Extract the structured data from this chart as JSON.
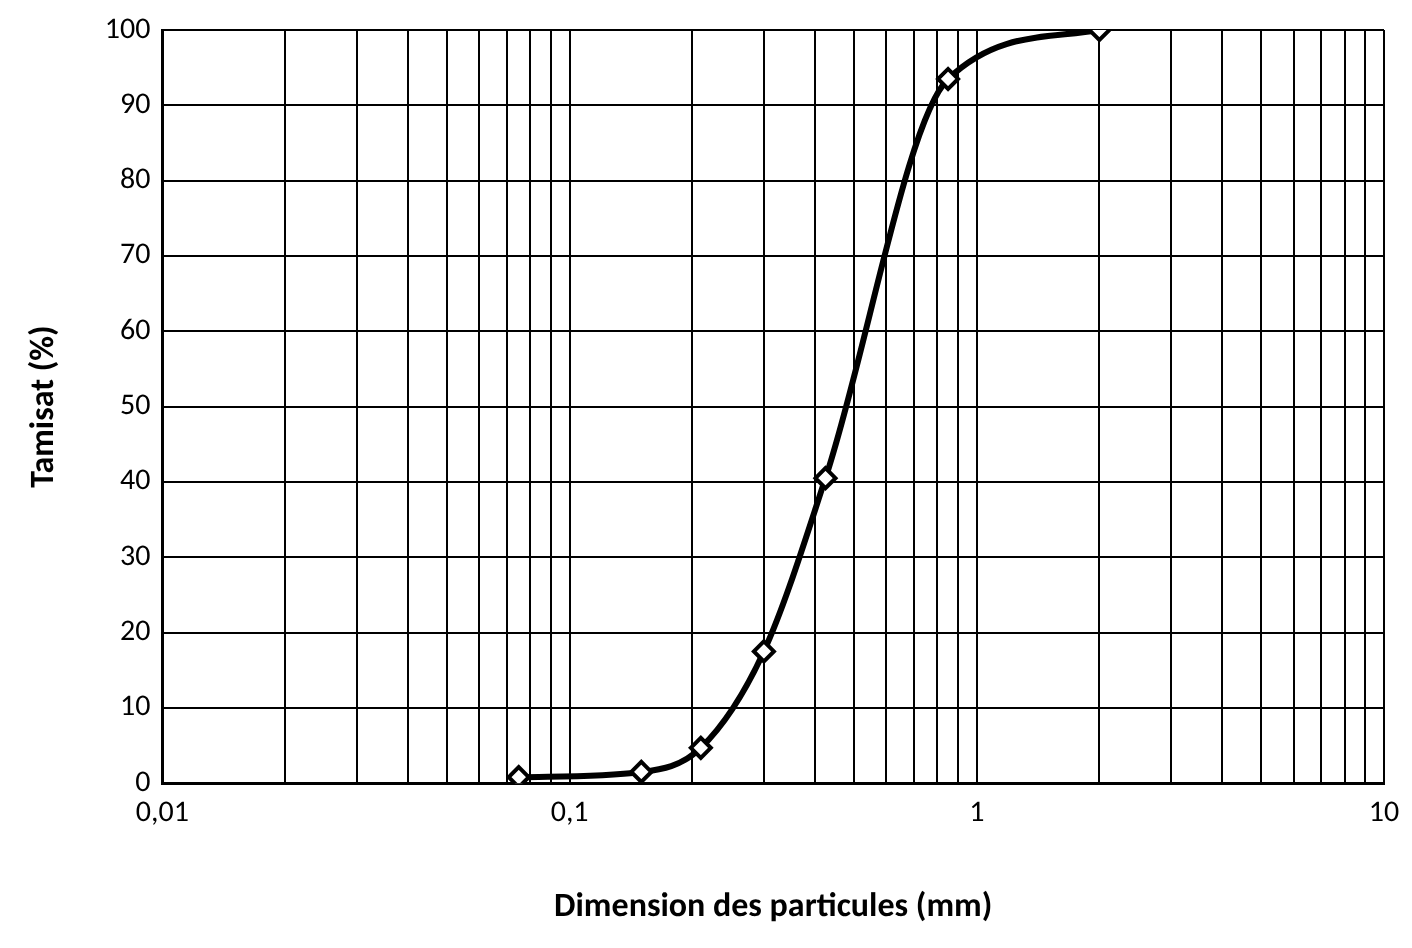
{
  "chart_data": {
    "type": "line",
    "xlabel": "Dimension des particules (mm)",
    "ylabel": "Tamisat (%)",
    "x": [
      0.075,
      0.15,
      0.21,
      0.3,
      0.425,
      0.85,
      2
    ],
    "series": [
      {
        "color": "#000000",
        "values": [
          0.8,
          1.5,
          4.7,
          17.5,
          40.5,
          93.5,
          100
        ]
      }
    ],
    "log": "x",
    "xlim": [
      0.01,
      10
    ],
    "xticks": [
      {
        "value": 0.01,
        "label": "0,01"
      },
      {
        "value": 0.02,
        "label": null
      },
      {
        "value": 0.03,
        "label": null
      },
      {
        "value": 0.04,
        "label": null
      },
      {
        "value": 0.05,
        "label": null
      },
      {
        "value": 0.06,
        "label": null
      },
      {
        "value": 0.07,
        "label": null
      },
      {
        "value": 0.08,
        "label": null
      },
      {
        "value": 0.09,
        "label": null
      },
      {
        "value": 0.1,
        "label": "0,1"
      },
      {
        "value": 0.2,
        "label": null
      },
      {
        "value": 0.3,
        "label": null
      },
      {
        "value": 0.4,
        "label": null
      },
      {
        "value": 0.5,
        "label": null
      },
      {
        "value": 0.6,
        "label": null
      },
      {
        "value": 0.7,
        "label": null
      },
      {
        "value": 0.8,
        "label": null
      },
      {
        "value": 0.9,
        "label": null
      },
      1,
      {
        "value": 2,
        "label": null
      },
      {
        "value": 3,
        "label": null
      },
      {
        "value": 4,
        "label": null
      },
      {
        "value": 5,
        "label": null
      },
      {
        "value": 6,
        "label": null
      },
      {
        "value": 7,
        "label": null
      },
      {
        "value": 8,
        "label": null
      },
      {
        "value": 9,
        "label": null
      },
      10
    ],
    "ylim": [
      0,
      100
    ],
    "yticks": [
      0,
      10,
      20,
      30,
      40,
      50,
      60,
      70,
      80,
      90,
      100
    ],
    "grid": true,
    "legend": false,
    "marker": "diamond",
    "line_style": "solid"
  }
}
